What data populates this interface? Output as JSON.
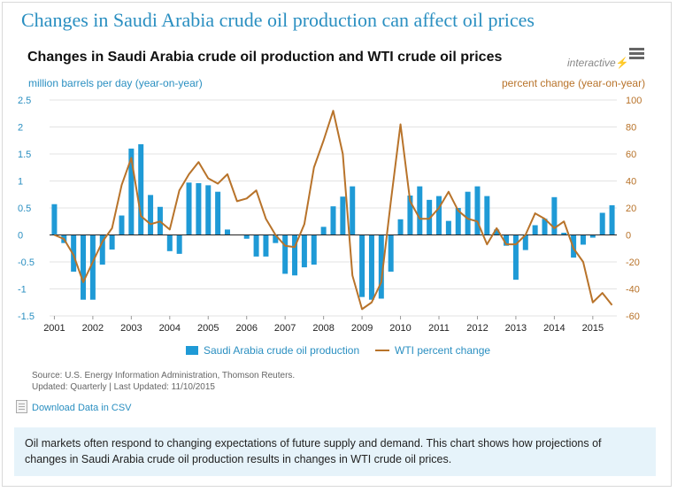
{
  "page": {
    "title": "Changes in Saudi Arabia crude oil production can affect oil prices",
    "interactive_label": "interactive",
    "interactive_glyph": "⚡",
    "download_label": "Download Data in CSV",
    "note": "Oil markets often respond to changing expectations of future supply and demand. This chart shows how projections of changes in Saudi Arabia crude oil production results in changes in WTI crude oil prices.",
    "source_line1": "Source: U.S. Energy Information Administration, Thomson Reuters.",
    "source_line2": "Updated: Quarterly | Last Updated: 11/10/2015"
  },
  "chart_data": {
    "type": "bar",
    "title": "Changes in Saudi Arabia crude oil production and WTI crude oil prices",
    "ylabel": "million barrels per day (year-on-year)",
    "y2label": "percent change (year-on-year)",
    "ylim": [
      -1.5,
      2.5
    ],
    "y2lim": [
      -60,
      100
    ],
    "yticks": [
      "2.5",
      "2",
      "1.5",
      "1",
      "0.5",
      "0",
      "-0.5",
      "-1",
      "-1.5"
    ],
    "y2ticks": [
      "100",
      "80",
      "60",
      "40",
      "20",
      "0",
      "-20",
      "-40",
      "-60"
    ],
    "xticks": [
      "2001",
      "2002",
      "2003",
      "2004",
      "2005",
      "2006",
      "2007",
      "2008",
      "2009",
      "2010",
      "2011",
      "2012",
      "2013",
      "2014",
      "2015"
    ],
    "grid": true,
    "legend_position": "bottom",
    "colors": {
      "bars": "#1f9ad6",
      "line": "#b8732a",
      "grid": "#e3e3e3"
    },
    "x": [
      "2001-Q1",
      "2001-Q2",
      "2001-Q3",
      "2001-Q4",
      "2002-Q1",
      "2002-Q2",
      "2002-Q3",
      "2002-Q4",
      "2003-Q1",
      "2003-Q2",
      "2003-Q3",
      "2003-Q4",
      "2004-Q1",
      "2004-Q2",
      "2004-Q3",
      "2004-Q4",
      "2005-Q1",
      "2005-Q2",
      "2005-Q3",
      "2005-Q4",
      "2006-Q1",
      "2006-Q2",
      "2006-Q3",
      "2006-Q4",
      "2007-Q1",
      "2007-Q2",
      "2007-Q3",
      "2007-Q4",
      "2008-Q1",
      "2008-Q2",
      "2008-Q3",
      "2008-Q4",
      "2009-Q1",
      "2009-Q2",
      "2009-Q3",
      "2009-Q4",
      "2010-Q1",
      "2010-Q2",
      "2010-Q3",
      "2010-Q4",
      "2011-Q1",
      "2011-Q2",
      "2011-Q3",
      "2011-Q4",
      "2012-Q1",
      "2012-Q2",
      "2012-Q3",
      "2012-Q4",
      "2013-Q1",
      "2013-Q2",
      "2013-Q3",
      "2013-Q4",
      "2014-Q1",
      "2014-Q2",
      "2014-Q3",
      "2014-Q4",
      "2015-Q1",
      "2015-Q2",
      "2015-Q3"
    ],
    "series": [
      {
        "name": "Saudi Arabia crude oil production",
        "type": "bar",
        "axis": "left",
        "values": [
          0.57,
          -0.15,
          -0.68,
          -1.2,
          -1.2,
          -0.55,
          -0.27,
          0.36,
          1.6,
          1.68,
          0.74,
          0.52,
          -0.3,
          -0.35,
          0.97,
          0.96,
          0.92,
          0.8,
          0.1,
          0.0,
          -0.07,
          -0.4,
          -0.4,
          -0.15,
          -0.72,
          -0.75,
          -0.6,
          -0.55,
          0.15,
          0.53,
          0.71,
          0.9,
          -1.15,
          -1.2,
          -1.18,
          -0.68,
          0.29,
          0.73,
          0.9,
          0.65,
          0.72,
          0.26,
          0.5,
          0.8,
          0.9,
          0.72,
          0.1,
          -0.2,
          -0.83,
          -0.28,
          0.18,
          0.3,
          0.7,
          0.04,
          -0.42,
          -0.18,
          -0.05,
          0.41,
          0.55
        ]
      },
      {
        "name": "WTI percent change",
        "type": "line",
        "axis": "right",
        "values": [
          0,
          -3,
          -15,
          -35,
          -20,
          -5,
          5,
          37,
          57,
          14,
          8,
          10,
          4,
          33,
          45,
          54,
          42,
          38,
          45,
          25,
          27,
          33,
          12,
          0,
          -8,
          -9,
          8,
          50,
          70,
          92,
          60,
          -30,
          -55,
          -50,
          -35,
          25,
          82,
          25,
          12,
          12,
          20,
          32,
          18,
          12,
          10,
          -7,
          5,
          -7,
          -7,
          0,
          16,
          12,
          5,
          10,
          -10,
          -20,
          -50,
          -43,
          -52
        ]
      }
    ]
  }
}
